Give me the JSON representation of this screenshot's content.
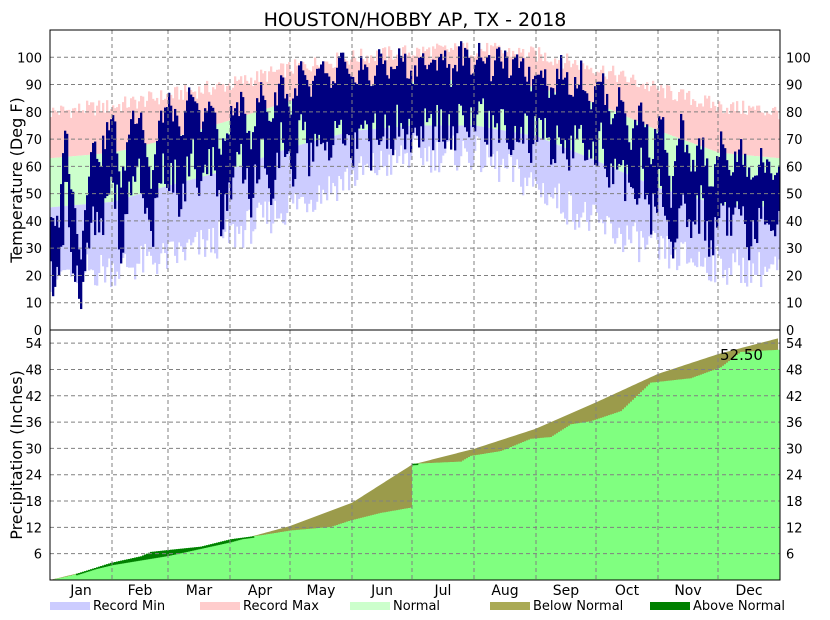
{
  "chart_data": [
    {
      "type": "bar",
      "title": "HOUSTON/HOBBY AP, TX - 2018",
      "ylabel": "Temperature (Deg F)",
      "ylim": [
        0,
        110
      ],
      "yticks": [
        0,
        10,
        20,
        30,
        40,
        50,
        60,
        70,
        80,
        90,
        100
      ],
      "grid": true,
      "series": [
        {
          "name": "Record Max",
          "color": "#ffcccc",
          "points": [
            [
              0,
              80
            ],
            [
              31,
              82
            ],
            [
              59,
              86
            ],
            [
              90,
              90
            ],
            [
              120,
              96
            ],
            [
              151,
              100
            ],
            [
              181,
              102
            ],
            [
              212,
              103
            ],
            [
              243,
              101
            ],
            [
              273,
              96
            ],
            [
              304,
              88
            ],
            [
              334,
              82
            ],
            [
              364,
              80
            ]
          ]
        },
        {
          "name": "Normal",
          "color": "#ccffcc",
          "points": [
            [
              0,
              63
            ],
            [
              31,
              65
            ],
            [
              59,
              70
            ],
            [
              90,
              77
            ],
            [
              120,
              84
            ],
            [
              151,
              89
            ],
            [
              181,
              91
            ],
            [
              212,
              92
            ],
            [
              243,
              89
            ],
            [
              273,
              83
            ],
            [
              304,
              73
            ],
            [
              334,
              65
            ],
            [
              364,
              63
            ]
          ]
        },
        {
          "name": "Normal Low",
          "color": "#ccffcc",
          "points": [
            [
              0,
              45
            ],
            [
              31,
              47
            ],
            [
              59,
              53
            ],
            [
              90,
              59
            ],
            [
              120,
              67
            ],
            [
              151,
              73
            ],
            [
              181,
              75
            ],
            [
              212,
              75
            ],
            [
              243,
              71
            ],
            [
              273,
              62
            ],
            [
              304,
              52
            ],
            [
              334,
              46
            ],
            [
              364,
              45
            ]
          ]
        },
        {
          "name": "Record Min",
          "color": "#ccccff",
          "points": [
            [
              0,
              22
            ],
            [
              31,
              24
            ],
            [
              59,
              28
            ],
            [
              90,
              36
            ],
            [
              120,
              47
            ],
            [
              151,
              58
            ],
            [
              181,
              66
            ],
            [
              212,
              66
            ],
            [
              243,
              54
            ],
            [
              273,
              40
            ],
            [
              304,
              30
            ],
            [
              334,
              25
            ],
            [
              364,
              23
            ]
          ]
        },
        {
          "name": "Observed",
          "color": "#000080",
          "points": [
            [
              0,
              35
            ],
            [
              4,
              28
            ],
            [
              7,
              68
            ],
            [
              10,
              45
            ],
            [
              15,
              20
            ],
            [
              20,
              60
            ],
            [
              25,
              55
            ],
            [
              28,
              65
            ],
            [
              32,
              68
            ],
            [
              35,
              42
            ],
            [
              40,
              70
            ],
            [
              45,
              72
            ],
            [
              50,
              45
            ],
            [
              55,
              70
            ],
            [
              60,
              75
            ],
            [
              65,
              60
            ],
            [
              70,
              82
            ],
            [
              75,
              65
            ],
            [
              80,
              78
            ],
            [
              85,
              55
            ],
            [
              90,
              70
            ],
            [
              95,
              75
            ],
            [
              100,
              62
            ],
            [
              105,
              80
            ],
            [
              110,
              68
            ],
            [
              115,
              85
            ],
            [
              120,
              72
            ],
            [
              125,
              88
            ],
            [
              130,
              76
            ],
            [
              135,
              90
            ],
            [
              140,
              78
            ],
            [
              145,
              92
            ],
            [
              150,
              80
            ],
            [
              155,
              90
            ],
            [
              160,
              82
            ],
            [
              165,
              92
            ],
            [
              170,
              85
            ],
            [
              175,
              93
            ],
            [
              180,
              84
            ],
            [
              185,
              92
            ],
            [
              190,
              86
            ],
            [
              195,
              94
            ],
            [
              200,
              85
            ],
            [
              205,
              94
            ],
            [
              210,
              88
            ],
            [
              215,
              95
            ],
            [
              220,
              86
            ],
            [
              225,
              93
            ],
            [
              230,
              85
            ],
            [
              235,
              92
            ],
            [
              240,
              82
            ],
            [
              245,
              90
            ],
            [
              250,
              78
            ],
            [
              255,
              88
            ],
            [
              260,
              80
            ],
            [
              265,
              86
            ],
            [
              270,
              75
            ],
            [
              275,
              84
            ],
            [
              280,
              70
            ],
            [
              285,
              78
            ],
            [
              290,
              60
            ],
            [
              295,
              75
            ],
            [
              300,
              55
            ],
            [
              305,
              72
            ],
            [
              310,
              40
            ],
            [
              315,
              68
            ],
            [
              320,
              48
            ],
            [
              325,
              62
            ],
            [
              330,
              45
            ],
            [
              335,
              60
            ],
            [
              340,
              50
            ],
            [
              345,
              58
            ],
            [
              350,
              45
            ],
            [
              355,
              55
            ],
            [
              360,
              48
            ],
            [
              364,
              52
            ]
          ]
        }
      ]
    },
    {
      "type": "area",
      "ylabel": "Precipitation (Inches)",
      "ylim": [
        0,
        57
      ],
      "yticks": [
        6,
        12,
        18,
        24,
        30,
        36,
        42,
        48,
        54
      ],
      "grid": true,
      "annotation": "52.50",
      "series": [
        {
          "name": "Normal",
          "color": "#9b9b4b",
          "points": [
            [
              0,
              0
            ],
            [
              31,
              3.4
            ],
            [
              59,
              5.5
            ],
            [
              90,
              8.6
            ],
            [
              120,
              12.3
            ],
            [
              151,
              17.6
            ],
            [
              181,
              26.3
            ],
            [
              212,
              29.9
            ],
            [
              243,
              34.5
            ],
            [
              273,
              40.5
            ],
            [
              304,
              47.0
            ],
            [
              334,
              51.5
            ],
            [
              364,
              55.1
            ]
          ]
        },
        {
          "name": "Observed",
          "color": "#80ff80",
          "points": [
            [
              0,
              0
            ],
            [
              10,
              1
            ],
            [
              30,
              3.9
            ],
            [
              45,
              5.4
            ],
            [
              50,
              6.4
            ],
            [
              60,
              6.9
            ],
            [
              75,
              7.6
            ],
            [
              90,
              9.3
            ],
            [
              105,
              10.2
            ],
            [
              120,
              11.3
            ],
            [
              140,
              12.1
            ],
            [
              150,
              13.6
            ],
            [
              165,
              15.3
            ],
            [
              180,
              16.5
            ],
            [
              181,
              26.5
            ],
            [
              205,
              27.0
            ],
            [
              210,
              28.3
            ],
            [
              225,
              29.4
            ],
            [
              240,
              32.2
            ],
            [
              250,
              32.6
            ],
            [
              260,
              35.5
            ],
            [
              270,
              36.2
            ],
            [
              285,
              38.5
            ],
            [
              300,
              45.0
            ],
            [
              320,
              46.0
            ],
            [
              335,
              48.5
            ],
            [
              345,
              52.0
            ],
            [
              364,
              52.5
            ]
          ]
        }
      ]
    }
  ],
  "xaxis": {
    "tick_labels": [
      "Jan",
      "Feb",
      "Mar",
      "Apr",
      "May",
      "Jun",
      "Jul",
      "Aug",
      "Sep",
      "Oct",
      "Nov",
      "Dec"
    ],
    "month_start_days": [
      0,
      31,
      59,
      90,
      120,
      151,
      181,
      212,
      243,
      273,
      304,
      334
    ],
    "days_in_year": 365
  },
  "legend": {
    "placement": "bottom",
    "items": [
      {
        "label": "Record Min",
        "color": "#ccccff"
      },
      {
        "label": "Record Max",
        "color": "#ffcccc"
      },
      {
        "label": "Normal",
        "color": "#ccffcc"
      },
      {
        "label": "Below Normal",
        "color": "#aaaa55"
      },
      {
        "label": "Above Normal",
        "color": "#008000"
      }
    ]
  }
}
